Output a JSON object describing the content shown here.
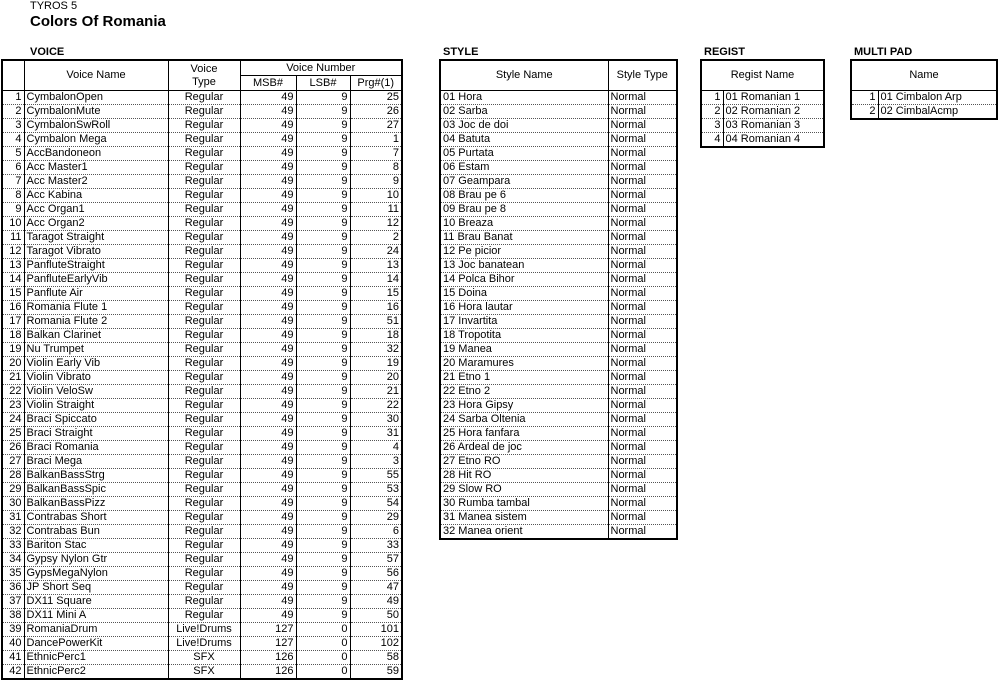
{
  "header": {
    "model": "TYROS 5",
    "title": "Colors Of Romania"
  },
  "voice": {
    "label": "VOICE",
    "columns": {
      "name": "Voice Name",
      "type": "Voice Type",
      "number": "Voice Number",
      "msb": "MSB#",
      "lsb": "LSB#",
      "prg": "Prg#(1)"
    },
    "rows": [
      [
        1,
        "CymbalonOpen",
        "Regular",
        49,
        9,
        25
      ],
      [
        2,
        "CymbalonMute",
        "Regular",
        49,
        9,
        26
      ],
      [
        3,
        "CymbalonSwRoll",
        "Regular",
        49,
        9,
        27
      ],
      [
        4,
        "Cymbalon Mega",
        "Regular",
        49,
        9,
        1
      ],
      [
        5,
        "AccBandoneon",
        "Regular",
        49,
        9,
        7
      ],
      [
        6,
        "Acc Master1",
        "Regular",
        49,
        9,
        8
      ],
      [
        7,
        "Acc Master2",
        "Regular",
        49,
        9,
        9
      ],
      [
        8,
        "Acc Kabina",
        "Regular",
        49,
        9,
        10
      ],
      [
        9,
        "Acc Organ1",
        "Regular",
        49,
        9,
        11
      ],
      [
        10,
        "Acc Organ2",
        "Regular",
        49,
        9,
        12
      ],
      [
        11,
        "Taragot Straight",
        "Regular",
        49,
        9,
        2
      ],
      [
        12,
        "Taragot Vibrato",
        "Regular",
        49,
        9,
        24
      ],
      [
        13,
        "PanfluteStraight",
        "Regular",
        49,
        9,
        13
      ],
      [
        14,
        "PanfluteEarlyVib",
        "Regular",
        49,
        9,
        14
      ],
      [
        15,
        "Panflute Air",
        "Regular",
        49,
        9,
        15
      ],
      [
        16,
        "Romania Flute 1",
        "Regular",
        49,
        9,
        16
      ],
      [
        17,
        "Romania Flute 2",
        "Regular",
        49,
        9,
        51
      ],
      [
        18,
        "Balkan Clarinet",
        "Regular",
        49,
        9,
        18
      ],
      [
        19,
        "Nu Trumpet",
        "Regular",
        49,
        9,
        32
      ],
      [
        20,
        "Violin Early Vib",
        "Regular",
        49,
        9,
        19
      ],
      [
        21,
        "Violin Vibrato",
        "Regular",
        49,
        9,
        20
      ],
      [
        22,
        "Violin VeloSw",
        "Regular",
        49,
        9,
        21
      ],
      [
        23,
        "Violin Straight",
        "Regular",
        49,
        9,
        22
      ],
      [
        24,
        "Braci Spiccato",
        "Regular",
        49,
        9,
        30
      ],
      [
        25,
        "Braci Straight",
        "Regular",
        49,
        9,
        31
      ],
      [
        26,
        "Braci Romania",
        "Regular",
        49,
        9,
        4
      ],
      [
        27,
        "Braci Mega",
        "Regular",
        49,
        9,
        3
      ],
      [
        28,
        "BalkanBassStrg",
        "Regular",
        49,
        9,
        55
      ],
      [
        29,
        "BalkanBassSpic",
        "Regular",
        49,
        9,
        53
      ],
      [
        30,
        "BalkanBassPizz",
        "Regular",
        49,
        9,
        54
      ],
      [
        31,
        "Contrabas Short",
        "Regular",
        49,
        9,
        29
      ],
      [
        32,
        "Contrabas Bun",
        "Regular",
        49,
        9,
        6
      ],
      [
        33,
        "Bariton Stac",
        "Regular",
        49,
        9,
        33
      ],
      [
        34,
        "Gypsy Nylon Gtr",
        "Regular",
        49,
        9,
        57
      ],
      [
        35,
        "GypsMegaNylon",
        "Regular",
        49,
        9,
        56
      ],
      [
        36,
        "JP Short Seq",
        "Regular",
        49,
        9,
        47
      ],
      [
        37,
        "DX11 Square",
        "Regular",
        49,
        9,
        49
      ],
      [
        38,
        "DX11 Mini A",
        "Regular",
        49,
        9,
        50
      ],
      [
        39,
        "RomaniaDrum",
        "Live!Drums",
        127,
        0,
        101
      ],
      [
        40,
        "DancePowerKit",
        "Live!Drums",
        127,
        0,
        102
      ],
      [
        41,
        "EthnicPerc1",
        "SFX",
        126,
        0,
        58
      ],
      [
        42,
        "EthnicPerc2",
        "SFX",
        126,
        0,
        59
      ]
    ]
  },
  "style": {
    "label": "STYLE",
    "columns": [
      "Style Name",
      "Style Type"
    ],
    "rows": [
      [
        "01 Hora",
        "Normal"
      ],
      [
        "02 Sarba",
        "Normal"
      ],
      [
        "03 Joc de doi",
        "Normal"
      ],
      [
        "04 Batuta",
        "Normal"
      ],
      [
        "05 Purtata",
        "Normal"
      ],
      [
        "06 Estam",
        "Normal"
      ],
      [
        "07 Geampara",
        "Normal"
      ],
      [
        "08 Brau pe 6",
        "Normal"
      ],
      [
        "09 Brau pe 8",
        "Normal"
      ],
      [
        "10 Breaza",
        "Normal"
      ],
      [
        "11 Brau Banat",
        "Normal"
      ],
      [
        "12 Pe picior",
        "Normal"
      ],
      [
        "13 Joc banatean",
        "Normal"
      ],
      [
        "14 Polca Bihor",
        "Normal"
      ],
      [
        "15 Doina",
        "Normal"
      ],
      [
        "16 Hora lautar",
        "Normal"
      ],
      [
        "17 Invartita",
        "Normal"
      ],
      [
        "18 Tropotita",
        "Normal"
      ],
      [
        "19 Manea",
        "Normal"
      ],
      [
        "20 Maramures",
        "Normal"
      ],
      [
        "21 Etno 1",
        "Normal"
      ],
      [
        "22 Etno 2",
        "Normal"
      ],
      [
        "23 Hora Gipsy",
        "Normal"
      ],
      [
        "24 Sarba Oltenia",
        "Normal"
      ],
      [
        "25 Hora fanfara",
        "Normal"
      ],
      [
        "26 Ardeal de joc",
        "Normal"
      ],
      [
        "27 Etno RO",
        "Normal"
      ],
      [
        "28 Hit RO",
        "Normal"
      ],
      [
        "29 Slow RO",
        "Normal"
      ],
      [
        "30 Rumba tambal",
        "Normal"
      ],
      [
        "31 Manea sistem",
        "Normal"
      ],
      [
        "32 Manea orient",
        "Normal"
      ]
    ]
  },
  "regist": {
    "label": "REGIST",
    "columns": [
      "Regist Name"
    ],
    "rows": [
      [
        1,
        "01 Romanian 1"
      ],
      [
        2,
        "02 Romanian 2"
      ],
      [
        3,
        "03 Romanian 3"
      ],
      [
        4,
        "04 Romanian 4"
      ]
    ]
  },
  "multi_pad": {
    "label": "MULTI PAD",
    "columns": [
      "Name"
    ],
    "rows": [
      [
        1,
        "01 Cimbalon Arp"
      ],
      [
        2,
        "02 CimbalAcmp"
      ]
    ]
  }
}
